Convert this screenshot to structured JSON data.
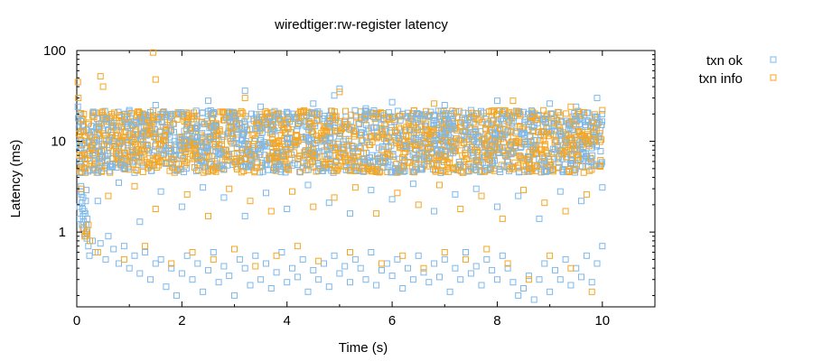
{
  "chart_data": {
    "type": "scatter",
    "title": "wiredtiger:rw-register latency",
    "xlabel": "Time (s)",
    "ylabel": "Latency (ms)",
    "xlim": [
      0,
      11
    ],
    "ylim": [
      0.15,
      100
    ],
    "y_scale": "log",
    "x_ticks": [
      0,
      2,
      4,
      6,
      8,
      10
    ],
    "x_tick_labels": [
      "0",
      "2",
      "4",
      "6",
      "8",
      "10"
    ],
    "y_ticks": [
      1,
      10,
      100
    ],
    "y_tick_labels": [
      "1",
      "10",
      "100"
    ],
    "legend_position": "top-right, outside plot",
    "marker": "open square",
    "series": [
      {
        "name": "txn ok",
        "color": "#7cb8ec",
        "points": [
          [
            0.02,
            24
          ],
          [
            0.03,
            18
          ],
          [
            0.04,
            14
          ],
          [
            0.05,
            9
          ],
          [
            0.06,
            6
          ],
          [
            0.07,
            4.5
          ],
          [
            0.08,
            3.2
          ],
          [
            0.09,
            2.6
          ],
          [
            0.1,
            2.1
          ],
          [
            0.11,
            1.8
          ],
          [
            0.12,
            1.5
          ],
          [
            0.13,
            1.3
          ],
          [
            0.14,
            1.1
          ],
          [
            0.15,
            0.95
          ],
          [
            0.16,
            1.6
          ],
          [
            0.17,
            2.2
          ],
          [
            0.18,
            1.2
          ],
          [
            0.19,
            0.85
          ],
          [
            0.2,
            1.4
          ],
          [
            0.22,
            0.7
          ],
          [
            0.24,
            0.55
          ],
          [
            0.05,
            1.9
          ],
          [
            0.06,
            1.4
          ],
          [
            0.08,
            2.8
          ],
          [
            0.1,
            1.2
          ],
          [
            0.12,
            2.4
          ],
          [
            0.14,
            1.7
          ],
          [
            0.16,
            0.9
          ],
          [
            0.18,
            2.9
          ],
          [
            0.2,
            1.05
          ],
          [
            0.3,
            0.8
          ],
          [
            0.35,
            0.6
          ],
          [
            0.45,
            0.75
          ],
          [
            0.55,
            0.5
          ],
          [
            0.6,
            0.9
          ],
          [
            0.7,
            0.65
          ],
          [
            0.8,
            0.45
          ],
          [
            0.9,
            0.7
          ],
          [
            1.0,
            0.4
          ],
          [
            1.1,
            0.55
          ],
          [
            1.2,
            0.35
          ],
          [
            1.3,
            0.6
          ],
          [
            1.4,
            0.3
          ],
          [
            1.5,
            0.45
          ],
          [
            1.6,
            0.5
          ],
          [
            1.7,
            0.25
          ],
          [
            1.8,
            0.4
          ],
          [
            1.9,
            0.2
          ],
          [
            2.0,
            0.35
          ],
          [
            2.1,
            0.55
          ],
          [
            2.2,
            0.3
          ],
          [
            2.3,
            0.45
          ],
          [
            2.4,
            0.22
          ],
          [
            2.5,
            0.38
          ],
          [
            2.6,
            0.6
          ],
          [
            2.7,
            0.28
          ],
          [
            2.8,
            0.42
          ],
          [
            2.9,
            0.33
          ],
          [
            3.0,
            0.2
          ],
          [
            3.1,
            0.5
          ],
          [
            3.2,
            0.4
          ],
          [
            3.3,
            0.26
          ],
          [
            3.4,
            0.55
          ],
          [
            3.5,
            0.3
          ],
          [
            3.6,
            0.45
          ],
          [
            3.7,
            0.24
          ],
          [
            3.8,
            0.36
          ],
          [
            3.9,
            0.6
          ],
          [
            4.0,
            0.28
          ],
          [
            4.1,
            0.4
          ],
          [
            4.2,
            0.32
          ],
          [
            4.3,
            0.5
          ],
          [
            4.4,
            0.22
          ],
          [
            4.5,
            0.38
          ],
          [
            4.6,
            0.3
          ],
          [
            4.7,
            0.45
          ],
          [
            4.8,
            0.25
          ],
          [
            4.9,
            0.55
          ],
          [
            5.0,
            0.35
          ],
          [
            5.1,
            0.42
          ],
          [
            5.2,
            0.28
          ],
          [
            5.3,
            0.5
          ],
          [
            5.4,
            0.4
          ],
          [
            5.5,
            0.3
          ],
          [
            5.6,
            0.6
          ],
          [
            5.7,
            0.26
          ],
          [
            5.8,
            0.38
          ],
          [
            5.9,
            0.45
          ],
          [
            6.0,
            0.33
          ],
          [
            6.1,
            0.5
          ],
          [
            6.2,
            0.24
          ],
          [
            6.3,
            0.4
          ],
          [
            6.4,
            0.3
          ],
          [
            6.5,
            0.55
          ],
          [
            6.6,
            0.36
          ],
          [
            6.7,
            0.28
          ],
          [
            6.8,
            0.45
          ],
          [
            6.9,
            0.32
          ],
          [
            7.0,
            0.5
          ],
          [
            7.1,
            0.22
          ],
          [
            7.2,
            0.4
          ],
          [
            7.3,
            0.3
          ],
          [
            7.4,
            0.6
          ],
          [
            7.5,
            0.35
          ],
          [
            7.6,
            0.42
          ],
          [
            7.7,
            0.26
          ],
          [
            7.8,
            0.5
          ],
          [
            7.9,
            0.38
          ],
          [
            8.0,
            0.3
          ],
          [
            8.1,
            0.55
          ],
          [
            8.2,
            0.4
          ],
          [
            8.3,
            0.28
          ],
          [
            8.4,
            0.2
          ],
          [
            8.5,
            0.24
          ],
          [
            8.6,
            0.33
          ],
          [
            8.7,
            0.18
          ],
          [
            8.8,
            0.3
          ],
          [
            8.9,
            0.45
          ],
          [
            9.0,
            0.22
          ],
          [
            9.1,
            0.38
          ],
          [
            9.2,
            0.3
          ],
          [
            9.3,
            0.5
          ],
          [
            9.4,
            0.26
          ],
          [
            9.5,
            0.4
          ],
          [
            9.6,
            0.32
          ],
          [
            9.7,
            0.55
          ],
          [
            9.8,
            0.28
          ],
          [
            9.9,
            0.45
          ],
          [
            10.0,
            0.7
          ],
          [
            0.4,
            2.2
          ],
          [
            0.8,
            3.5
          ],
          [
            1.2,
            1.3
          ],
          [
            1.6,
            2.8
          ],
          [
            2.0,
            1.9
          ],
          [
            2.4,
            3.1
          ],
          [
            2.8,
            2.4
          ],
          [
            3.2,
            1.5
          ],
          [
            3.6,
            2.7
          ],
          [
            4.0,
            1.8
          ],
          [
            4.4,
            3.3
          ],
          [
            4.8,
            2.1
          ],
          [
            5.2,
            1.6
          ],
          [
            5.6,
            2.9
          ],
          [
            6.0,
            2.3
          ],
          [
            6.4,
            3.4
          ],
          [
            6.8,
            1.7
          ],
          [
            7.2,
            2.6
          ],
          [
            7.6,
            3.0
          ],
          [
            8.0,
            1.9
          ],
          [
            8.4,
            2.5
          ],
          [
            8.8,
            1.4
          ],
          [
            9.2,
            2.8
          ],
          [
            9.6,
            2.2
          ],
          [
            10.0,
            3.1
          ],
          [
            0.5,
            18
          ],
          [
            1.0,
            22
          ],
          [
            1.5,
            25
          ],
          [
            2.0,
            20
          ],
          [
            2.5,
            28
          ],
          [
            3.0,
            19
          ],
          [
            3.2,
            36
          ],
          [
            3.5,
            24
          ],
          [
            4.0,
            21
          ],
          [
            4.5,
            26
          ],
          [
            4.9,
            32
          ],
          [
            5.0,
            38
          ],
          [
            5.5,
            23
          ],
          [
            6.0,
            27
          ],
          [
            6.5,
            20
          ],
          [
            7.0,
            25
          ],
          [
            7.5,
            22
          ],
          [
            8.0,
            28
          ],
          [
            8.5,
            21
          ],
          [
            9.0,
            26
          ],
          [
            9.5,
            24
          ],
          [
            9.9,
            30
          ]
        ]
      },
      {
        "name": "txn info",
        "color": "#f5a623",
        "points": [
          [
            0.02,
            45
          ],
          [
            0.03,
            30
          ],
          [
            0.04,
            12
          ],
          [
            0.05,
            7
          ],
          [
            0.07,
            5
          ],
          [
            0.09,
            3
          ],
          [
            0.12,
            1.1
          ],
          [
            0.15,
            0.9
          ],
          [
            0.18,
            1.0
          ],
          [
            0.2,
            0.95
          ],
          [
            0.22,
            1.2
          ],
          [
            0.25,
            0.8
          ],
          [
            0.45,
            52
          ],
          [
            0.5,
            40
          ],
          [
            1.45,
            95
          ],
          [
            1.5,
            48
          ],
          [
            3.2,
            30
          ],
          [
            5.0,
            35
          ],
          [
            6.8,
            26
          ],
          [
            8.3,
            28
          ],
          [
            9.4,
            24
          ],
          [
            10.0,
            22
          ],
          [
            0.4,
            0.6
          ],
          [
            0.9,
            0.5
          ],
          [
            1.3,
            0.7
          ],
          [
            1.8,
            0.45
          ],
          [
            2.2,
            0.6
          ],
          [
            2.6,
            0.5
          ],
          [
            3.0,
            0.65
          ],
          [
            3.4,
            0.42
          ],
          [
            3.8,
            0.55
          ],
          [
            4.2,
            0.7
          ],
          [
            4.6,
            0.48
          ],
          [
            5.2,
            0.6
          ],
          [
            5.8,
            0.45
          ],
          [
            6.2,
            0.55
          ],
          [
            6.6,
            0.4
          ],
          [
            7.0,
            0.6
          ],
          [
            7.4,
            0.5
          ],
          [
            7.8,
            0.65
          ],
          [
            8.2,
            0.45
          ],
          [
            8.6,
            0.3
          ],
          [
            9.0,
            0.55
          ],
          [
            9.4,
            0.4
          ],
          [
            9.8,
            0.22
          ],
          [
            0.6,
            2.5
          ],
          [
            1.1,
            3.2
          ],
          [
            1.5,
            1.8
          ],
          [
            2.1,
            2.6
          ],
          [
            2.5,
            1.5
          ],
          [
            2.9,
            3.0
          ],
          [
            3.3,
            2.2
          ],
          [
            3.7,
            1.7
          ],
          [
            4.1,
            2.8
          ],
          [
            4.5,
            1.9
          ],
          [
            4.9,
            2.4
          ],
          [
            5.3,
            3.1
          ],
          [
            5.7,
            1.6
          ],
          [
            6.1,
            2.7
          ],
          [
            6.5,
            2.0
          ],
          [
            6.9,
            3.3
          ],
          [
            7.3,
            1.8
          ],
          [
            7.7,
            2.5
          ],
          [
            8.1,
            1.4
          ],
          [
            8.5,
            2.9
          ],
          [
            8.9,
            2.1
          ],
          [
            9.3,
            1.7
          ],
          [
            9.7,
            2.6
          ]
        ]
      }
    ]
  }
}
